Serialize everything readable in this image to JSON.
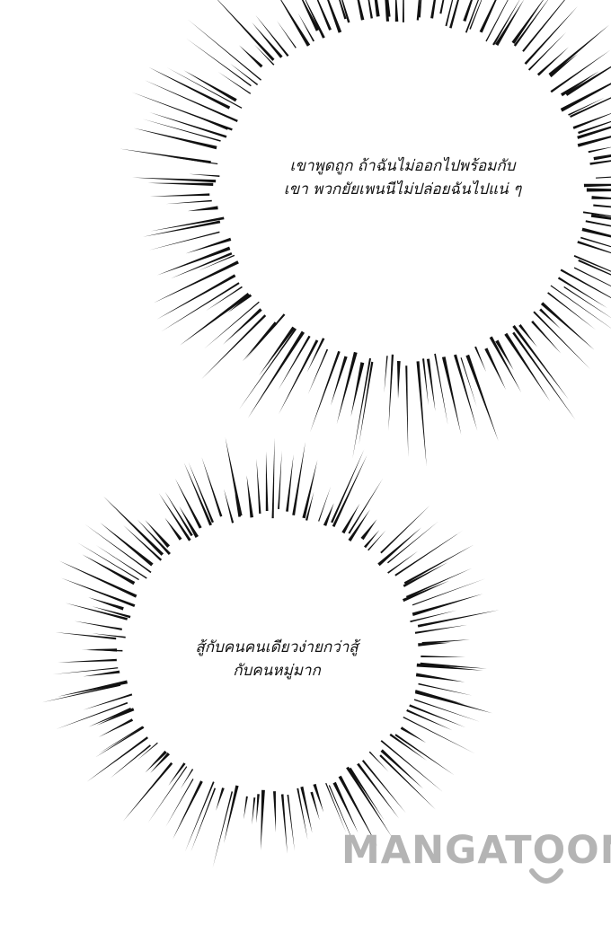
{
  "panel": {
    "bubbles": [
      {
        "lines": [
          "เขาพูดถูก ถ้าฉันไม่ออกไปพร้อมกับ",
          "เขา พวกยัยเพนนีไม่ปล่อยฉันไปแน่ ๆ"
        ]
      },
      {
        "lines": [
          "สู้กับคนคนเดียวง่ายกว่าสู้",
          "กับคนหมู่มาก"
        ]
      }
    ]
  },
  "watermark": {
    "text": "MANGATOON",
    "color": "#b4b4b4"
  },
  "colors": {
    "background": "#ffffff",
    "ink": "#111111"
  }
}
